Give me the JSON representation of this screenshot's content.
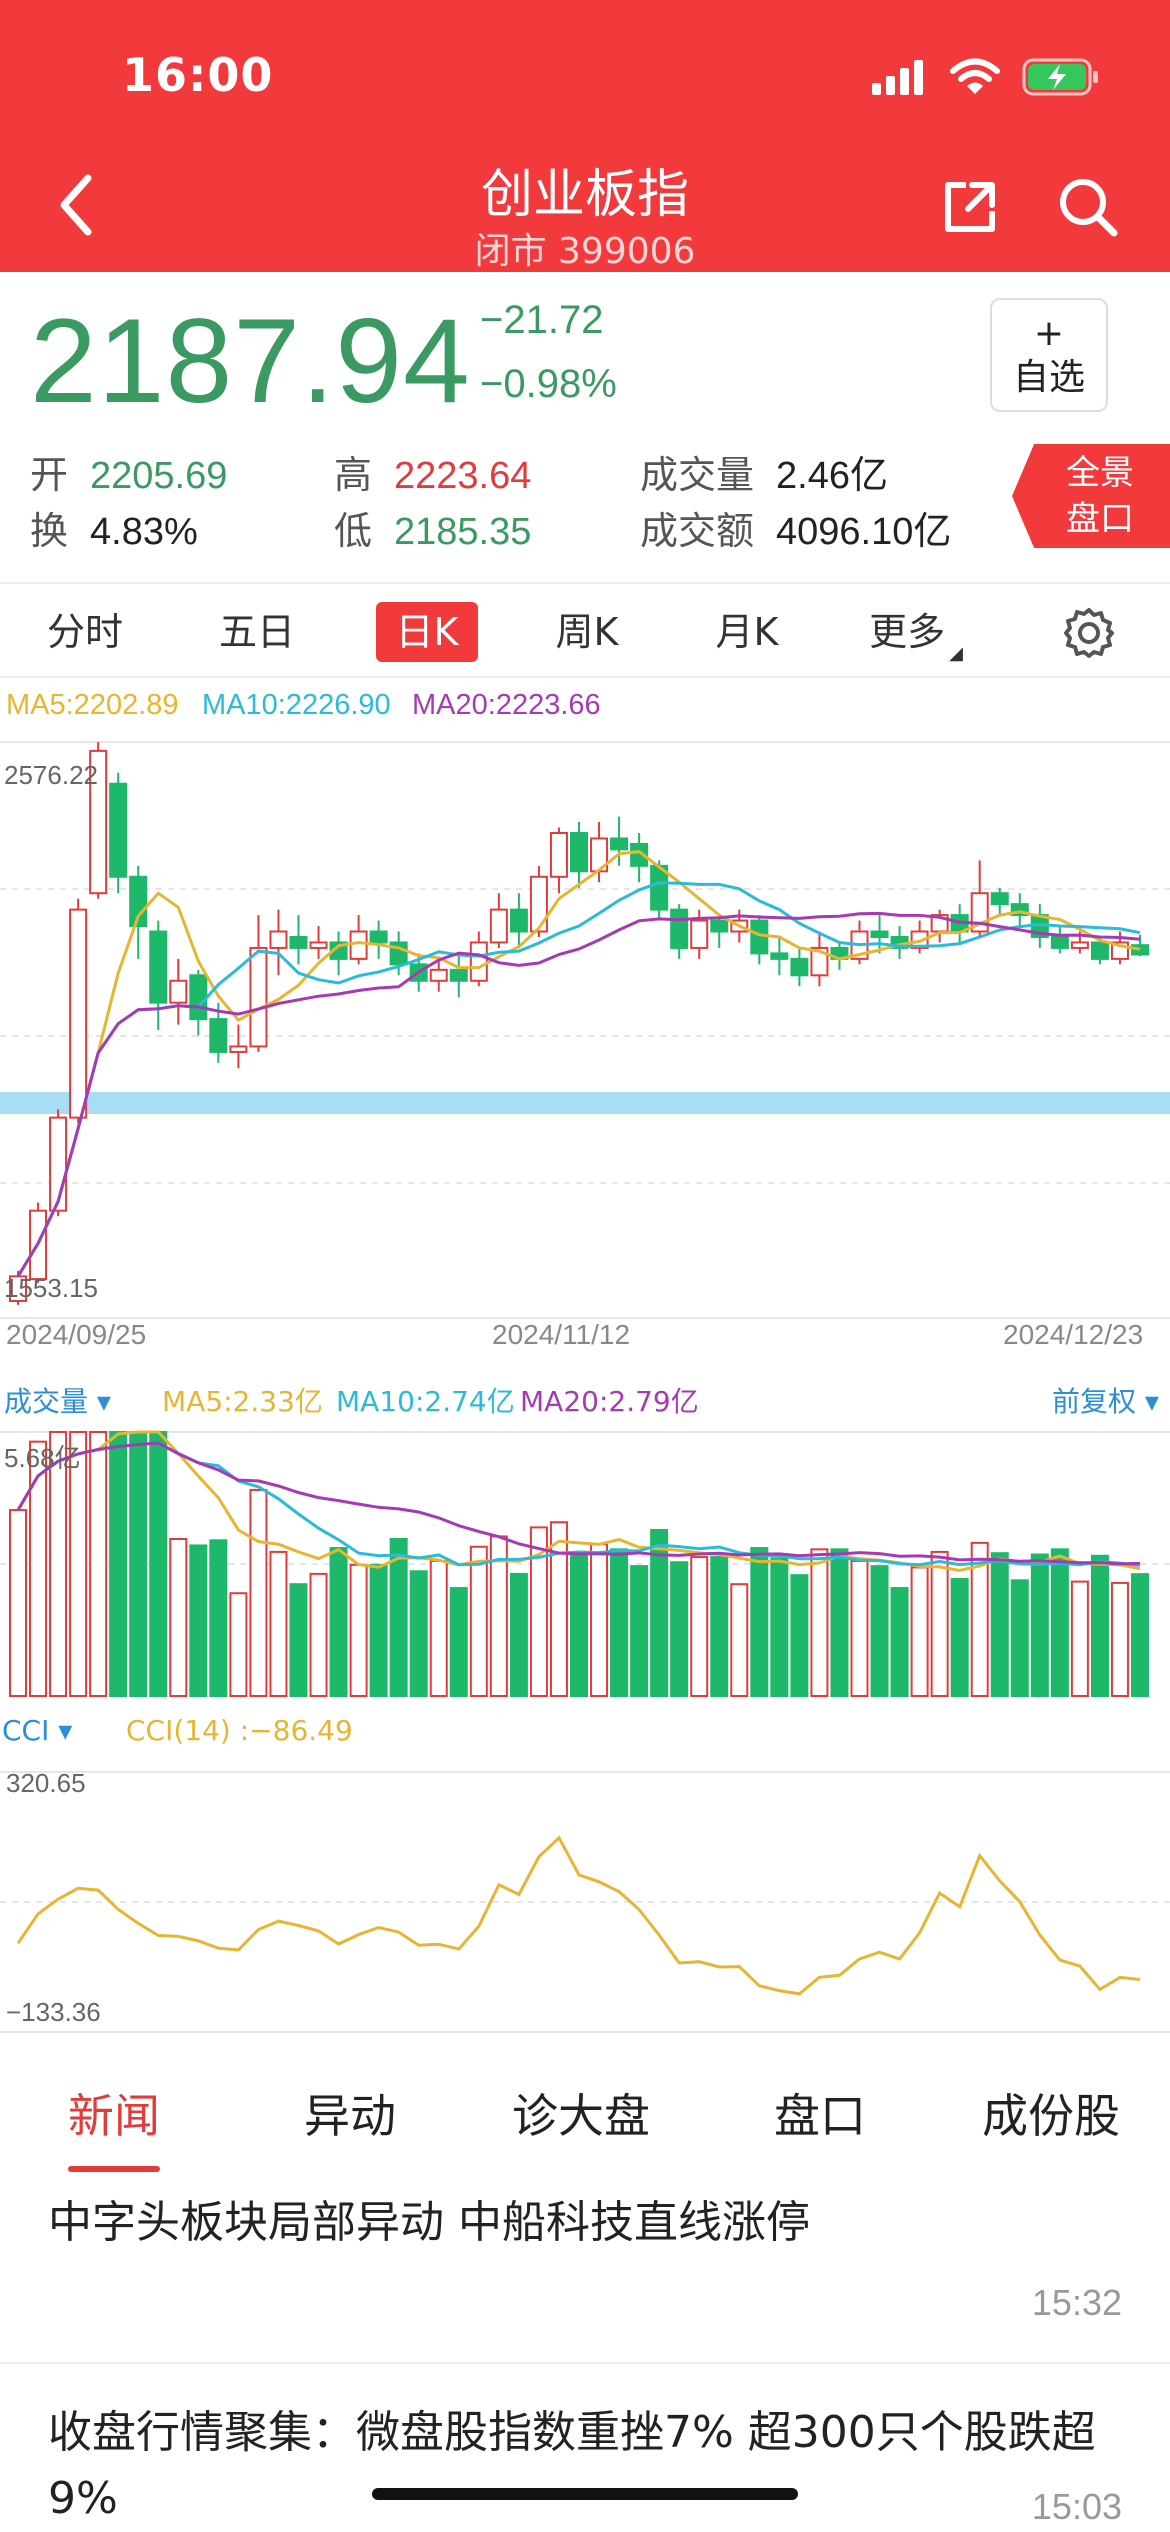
{
  "status": {
    "time": "16:00"
  },
  "header": {
    "title": "创业板指",
    "subtitle": "闭市 399006"
  },
  "quote": {
    "price": "2187.94",
    "change": "−21.72",
    "change_pct": "−0.98%",
    "fav_plus": "+",
    "fav_label": "自选",
    "open_label": "开",
    "open": "2205.69",
    "turnover_label": "换",
    "turnover": "4.83%",
    "high_label": "高",
    "high": "2223.64",
    "low_label": "低",
    "low": "2185.35",
    "vol_label": "成交量",
    "volume": "2.46亿",
    "amt_label": "成交额",
    "amount": "4096.10亿",
    "full_line1": "全景",
    "full_line2": "盘口"
  },
  "period_tabs": [
    {
      "label": "分时"
    },
    {
      "label": "五日"
    },
    {
      "label": "日K",
      "active": true
    },
    {
      "label": "周K"
    },
    {
      "label": "月K"
    },
    {
      "label": "更多"
    }
  ],
  "kline": {
    "ma5_label": "MA5:2202.89",
    "ma10_label": "MA10:2226.90",
    "ma20_label": "MA20:2223.66",
    "y_max_label": "2576.22",
    "y_min_label": "1553.15",
    "dates": [
      "2024/09/25",
      "2024/11/12",
      "2024/12/23"
    ]
  },
  "volume": {
    "name": "成交量 ▾",
    "ma5": "MA5:2.33亿",
    "ma10": "MA10:2.74亿",
    "ma20": "MA20:2.79亿",
    "adjust": "前复权 ▾",
    "max_label": "5.68亿"
  },
  "cci": {
    "name": "CCI ▾",
    "value_label": "CCI(14) :−86.49",
    "max_label": "320.65",
    "min_label": "−133.36"
  },
  "news_tabs": [
    {
      "label": "新闻",
      "active": true
    },
    {
      "label": "异动"
    },
    {
      "label": "诊大盘"
    },
    {
      "label": "盘口"
    },
    {
      "label": "成份股"
    }
  ],
  "news": [
    {
      "title": "中字头板块局部异动 中船科技直线涨停",
      "time": "15:32"
    },
    {
      "title": "收盘行情聚集：微盘股指数重挫7% 超300只个股跌超9%",
      "time": "15:03"
    }
  ],
  "colors": {
    "up": "#e23b3b",
    "down": "#1db86a",
    "ma5": "#e8b532",
    "ma10": "#2bbbd8",
    "ma20": "#a43bb5",
    "brand": "#f2393c"
  },
  "chart_data": {
    "type": "candlestick",
    "title": "创业板指 日K",
    "x_range": [
      "2024/09/25",
      "2024/12/23"
    ],
    "ylim": [
      1553.15,
      2576.22
    ],
    "candles": [
      [
        1555,
        1600,
        1548,
        1610
      ],
      [
        1595,
        1720,
        1588,
        1735
      ],
      [
        1720,
        1890,
        1710,
        1905
      ],
      [
        1890,
        2270,
        1880,
        2290
      ],
      [
        2300,
        2560,
        2290,
        2576
      ],
      [
        2500,
        2330,
        2300,
        2520
      ],
      [
        2330,
        2240,
        2180,
        2350
      ],
      [
        2230,
        2100,
        2050,
        2250
      ],
      [
        2100,
        2140,
        2060,
        2180
      ],
      [
        2150,
        2070,
        2040,
        2160
      ],
      [
        2070,
        2010,
        1990,
        2100
      ],
      [
        2010,
        2020,
        1980,
        2060
      ],
      [
        2020,
        2200,
        2010,
        2260
      ],
      [
        2200,
        2230,
        2150,
        2270
      ],
      [
        2220,
        2200,
        2170,
        2260
      ],
      [
        2200,
        2210,
        2180,
        2240
      ],
      [
        2210,
        2180,
        2150,
        2230
      ],
      [
        2180,
        2230,
        2170,
        2260
      ],
      [
        2230,
        2210,
        2180,
        2250
      ],
      [
        2210,
        2170,
        2150,
        2230
      ],
      [
        2170,
        2140,
        2120,
        2190
      ],
      [
        2140,
        2160,
        2120,
        2180
      ],
      [
        2160,
        2140,
        2110,
        2190
      ],
      [
        2140,
        2210,
        2130,
        2230
      ],
      [
        2210,
        2270,
        2200,
        2300
      ],
      [
        2270,
        2230,
        2200,
        2300
      ],
      [
        2230,
        2330,
        2220,
        2350
      ],
      [
        2330,
        2410,
        2300,
        2420
      ],
      [
        2410,
        2340,
        2310,
        2430
      ],
      [
        2340,
        2400,
        2320,
        2430
      ],
      [
        2400,
        2380,
        2350,
        2440
      ],
      [
        2390,
        2350,
        2320,
        2410
      ],
      [
        2350,
        2270,
        2250,
        2360
      ],
      [
        2270,
        2200,
        2180,
        2280
      ],
      [
        2200,
        2250,
        2180,
        2270
      ],
      [
        2250,
        2230,
        2200,
        2260
      ],
      [
        2230,
        2250,
        2210,
        2270
      ],
      [
        2250,
        2190,
        2170,
        2260
      ],
      [
        2190,
        2180,
        2150,
        2220
      ],
      [
        2180,
        2150,
        2130,
        2200
      ],
      [
        2150,
        2200,
        2130,
        2230
      ],
      [
        2200,
        2180,
        2160,
        2210
      ],
      [
        2180,
        2230,
        2170,
        2250
      ],
      [
        2230,
        2220,
        2190,
        2260
      ],
      [
        2220,
        2200,
        2180,
        2240
      ],
      [
        2200,
        2230,
        2190,
        2250
      ],
      [
        2230,
        2260,
        2210,
        2270
      ],
      [
        2260,
        2230,
        2210,
        2280
      ],
      [
        2230,
        2300,
        2220,
        2360
      ],
      [
        2300,
        2280,
        2260,
        2310
      ],
      [
        2280,
        2260,
        2240,
        2300
      ],
      [
        2260,
        2220,
        2200,
        2280
      ],
      [
        2220,
        2200,
        2190,
        2240
      ],
      [
        2200,
        2210,
        2190,
        2230
      ],
      [
        2210,
        2180,
        2170,
        2220
      ],
      [
        2180,
        2210,
        2170,
        2230
      ],
      [
        2205,
        2188,
        2185,
        2224
      ]
    ],
    "volume_ylim": [
      0,
      5.68
    ],
    "cci_range": [
      -133.36,
      320.65
    ]
  }
}
